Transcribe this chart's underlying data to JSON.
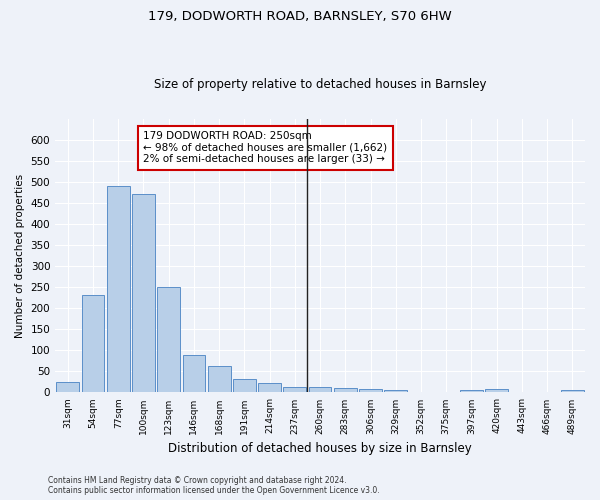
{
  "title": "179, DODWORTH ROAD, BARNSLEY, S70 6HW",
  "subtitle": "Size of property relative to detached houses in Barnsley",
  "xlabel": "Distribution of detached houses by size in Barnsley",
  "ylabel": "Number of detached properties",
  "categories": [
    "31sqm",
    "54sqm",
    "77sqm",
    "100sqm",
    "123sqm",
    "146sqm",
    "168sqm",
    "191sqm",
    "214sqm",
    "237sqm",
    "260sqm",
    "283sqm",
    "306sqm",
    "329sqm",
    "352sqm",
    "375sqm",
    "397sqm",
    "420sqm",
    "443sqm",
    "466sqm",
    "489sqm"
  ],
  "values": [
    25,
    232,
    490,
    472,
    250,
    88,
    63,
    31,
    23,
    13,
    12,
    10,
    8,
    5,
    2,
    1,
    5,
    7,
    1,
    1,
    5
  ],
  "bar_color": "#b8cfe8",
  "bar_edge_color": "#5b8fc9",
  "vline_x": 9.5,
  "annotation_text": "179 DODWORTH ROAD: 250sqm\n← 98% of detached houses are smaller (1,662)\n2% of semi-detached houses are larger (33) →",
  "annotation_box_color": "#ffffff",
  "annotation_box_edge_color": "#cc0000",
  "ylim": [
    0,
    650
  ],
  "yticks": [
    0,
    50,
    100,
    150,
    200,
    250,
    300,
    350,
    400,
    450,
    500,
    550,
    600
  ],
  "background_color": "#eef2f9",
  "grid_color": "#ffffff",
  "footer": "Contains HM Land Registry data © Crown copyright and database right 2024.\nContains public sector information licensed under the Open Government Licence v3.0."
}
